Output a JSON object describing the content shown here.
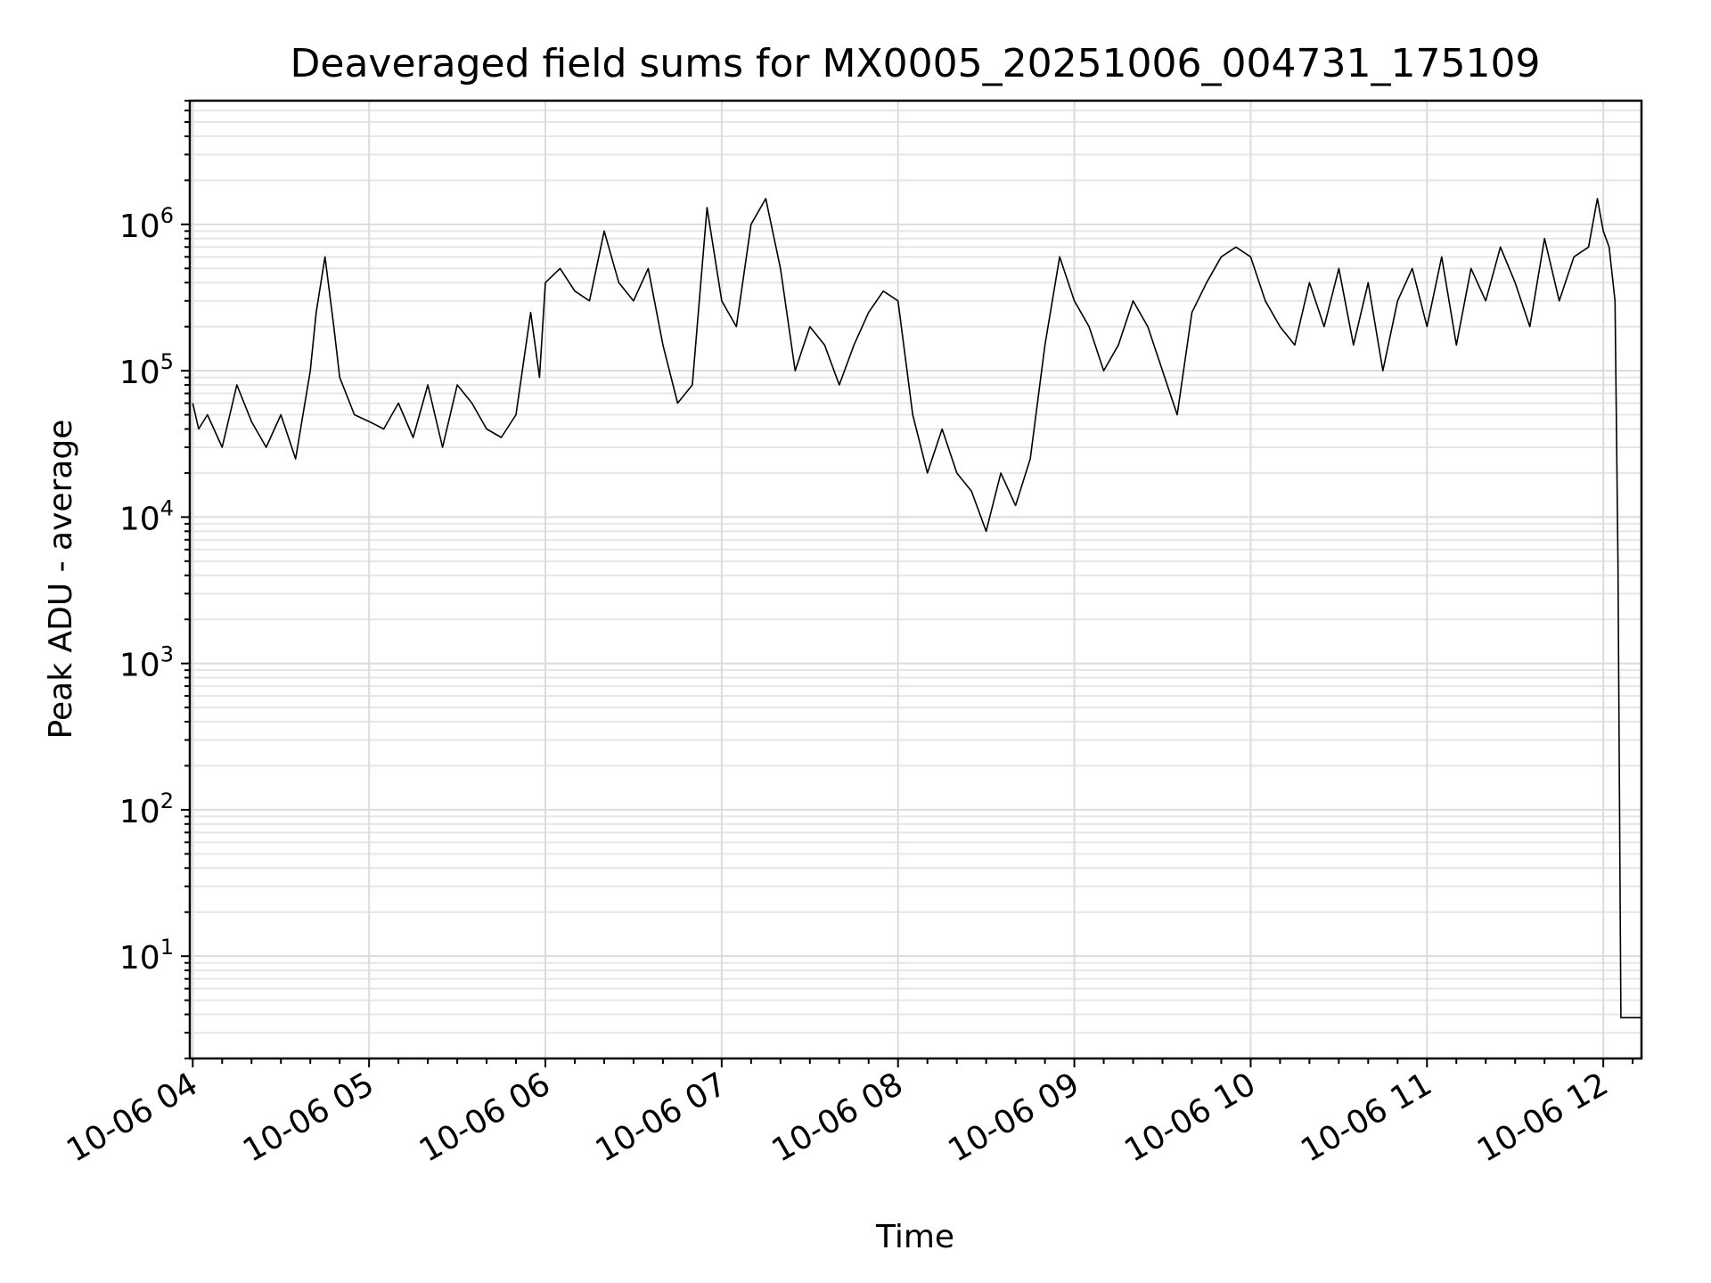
{
  "chart_data": {
    "type": "line",
    "title": "Deaveraged field sums for MX0005_20251006_004731_175109",
    "xlabel": "Time",
    "ylabel": "Peak ADU - average",
    "yscale": "log",
    "ylim": [
      2.0,
      7000000
    ],
    "xlim": [
      "2025-10-06 03:59",
      "2025-10-06 12:13"
    ],
    "grid": true,
    "x_ticks": [
      {
        "value": "2025-10-06 04:00",
        "label": "10-06 04"
      },
      {
        "value": "2025-10-06 05:00",
        "label": "10-06 05"
      },
      {
        "value": "2025-10-06 06:00",
        "label": "10-06 06"
      },
      {
        "value": "2025-10-06 07:00",
        "label": "10-06 07"
      },
      {
        "value": "2025-10-06 08:00",
        "label": "10-06 08"
      },
      {
        "value": "2025-10-06 09:00",
        "label": "10-06 09"
      },
      {
        "value": "2025-10-06 10:00",
        "label": "10-06 10"
      },
      {
        "value": "2025-10-06 11:00",
        "label": "10-06 11"
      },
      {
        "value": "2025-10-06 12:00",
        "label": "10-06 12"
      }
    ],
    "y_ticks": [
      {
        "value": 10,
        "base": "10",
        "exp": "1"
      },
      {
        "value": 100,
        "base": "10",
        "exp": "2"
      },
      {
        "value": 1000,
        "base": "10",
        "exp": "3"
      },
      {
        "value": 10000,
        "base": "10",
        "exp": "4"
      },
      {
        "value": 100000,
        "base": "10",
        "exp": "5"
      },
      {
        "value": 1000000,
        "base": "10",
        "exp": "6"
      }
    ],
    "series": [
      {
        "color": "#000000",
        "points": [
          [
            "2025-10-06 04:00",
            60000
          ],
          [
            "2025-10-06 04:02",
            40000
          ],
          [
            "2025-10-06 04:05",
            50000
          ],
          [
            "2025-10-06 04:10",
            30000
          ],
          [
            "2025-10-06 04:15",
            80000
          ],
          [
            "2025-10-06 04:20",
            45000
          ],
          [
            "2025-10-06 04:25",
            30000
          ],
          [
            "2025-10-06 04:30",
            50000
          ],
          [
            "2025-10-06 04:35",
            25000
          ],
          [
            "2025-10-06 04:40",
            100000
          ],
          [
            "2025-10-06 04:42",
            250000
          ],
          [
            "2025-10-06 04:45",
            600000
          ],
          [
            "2025-10-06 04:48",
            200000
          ],
          [
            "2025-10-06 04:50",
            90000
          ],
          [
            "2025-10-06 04:55",
            50000
          ],
          [
            "2025-10-06 05:00",
            45000
          ],
          [
            "2025-10-06 05:05",
            40000
          ],
          [
            "2025-10-06 05:10",
            60000
          ],
          [
            "2025-10-06 05:15",
            35000
          ],
          [
            "2025-10-06 05:20",
            80000
          ],
          [
            "2025-10-06 05:25",
            30000
          ],
          [
            "2025-10-06 05:30",
            80000
          ],
          [
            "2025-10-06 05:35",
            60000
          ],
          [
            "2025-10-06 05:40",
            40000
          ],
          [
            "2025-10-06 05:45",
            35000
          ],
          [
            "2025-10-06 05:50",
            50000
          ],
          [
            "2025-10-06 05:55",
            250000
          ],
          [
            "2025-10-06 05:58",
            90000
          ],
          [
            "2025-10-06 06:00",
            400000
          ],
          [
            "2025-10-06 06:05",
            500000
          ],
          [
            "2025-10-06 06:10",
            350000
          ],
          [
            "2025-10-06 06:15",
            300000
          ],
          [
            "2025-10-06 06:20",
            900000
          ],
          [
            "2025-10-06 06:25",
            400000
          ],
          [
            "2025-10-06 06:30",
            300000
          ],
          [
            "2025-10-06 06:35",
            500000
          ],
          [
            "2025-10-06 06:40",
            150000
          ],
          [
            "2025-10-06 06:45",
            60000
          ],
          [
            "2025-10-06 06:50",
            80000
          ],
          [
            "2025-10-06 06:55",
            1300000
          ],
          [
            "2025-10-06 07:00",
            300000
          ],
          [
            "2025-10-06 07:05",
            200000
          ],
          [
            "2025-10-06 07:10",
            1000000
          ],
          [
            "2025-10-06 07:15",
            1500000
          ],
          [
            "2025-10-06 07:20",
            500000
          ],
          [
            "2025-10-06 07:25",
            100000
          ],
          [
            "2025-10-06 07:30",
            200000
          ],
          [
            "2025-10-06 07:35",
            150000
          ],
          [
            "2025-10-06 07:40",
            80000
          ],
          [
            "2025-10-06 07:45",
            150000
          ],
          [
            "2025-10-06 07:50",
            250000
          ],
          [
            "2025-10-06 07:55",
            350000
          ],
          [
            "2025-10-06 08:00",
            300000
          ],
          [
            "2025-10-06 08:05",
            50000
          ],
          [
            "2025-10-06 08:10",
            20000
          ],
          [
            "2025-10-06 08:15",
            40000
          ],
          [
            "2025-10-06 08:20",
            20000
          ],
          [
            "2025-10-06 08:25",
            15000
          ],
          [
            "2025-10-06 08:30",
            8000
          ],
          [
            "2025-10-06 08:35",
            20000
          ],
          [
            "2025-10-06 08:40",
            12000
          ],
          [
            "2025-10-06 08:45",
            25000
          ],
          [
            "2025-10-06 08:50",
            150000
          ],
          [
            "2025-10-06 08:55",
            600000
          ],
          [
            "2025-10-06 09:00",
            300000
          ],
          [
            "2025-10-06 09:05",
            200000
          ],
          [
            "2025-10-06 09:10",
            100000
          ],
          [
            "2025-10-06 09:15",
            150000
          ],
          [
            "2025-10-06 09:20",
            300000
          ],
          [
            "2025-10-06 09:25",
            200000
          ],
          [
            "2025-10-06 09:30",
            100000
          ],
          [
            "2025-10-06 09:35",
            50000
          ],
          [
            "2025-10-06 09:40",
            250000
          ],
          [
            "2025-10-06 09:45",
            400000
          ],
          [
            "2025-10-06 09:50",
            600000
          ],
          [
            "2025-10-06 09:55",
            700000
          ],
          [
            "2025-10-06 10:00",
            600000
          ],
          [
            "2025-10-06 10:05",
            300000
          ],
          [
            "2025-10-06 10:10",
            200000
          ],
          [
            "2025-10-06 10:15",
            150000
          ],
          [
            "2025-10-06 10:20",
            400000
          ],
          [
            "2025-10-06 10:25",
            200000
          ],
          [
            "2025-10-06 10:30",
            500000
          ],
          [
            "2025-10-06 10:35",
            150000
          ],
          [
            "2025-10-06 10:40",
            400000
          ],
          [
            "2025-10-06 10:45",
            100000
          ],
          [
            "2025-10-06 10:50",
            300000
          ],
          [
            "2025-10-06 10:55",
            500000
          ],
          [
            "2025-10-06 11:00",
            200000
          ],
          [
            "2025-10-06 11:05",
            600000
          ],
          [
            "2025-10-06 11:10",
            150000
          ],
          [
            "2025-10-06 11:15",
            500000
          ],
          [
            "2025-10-06 11:20",
            300000
          ],
          [
            "2025-10-06 11:25",
            700000
          ],
          [
            "2025-10-06 11:30",
            400000
          ],
          [
            "2025-10-06 11:35",
            200000
          ],
          [
            "2025-10-06 11:40",
            800000
          ],
          [
            "2025-10-06 11:45",
            300000
          ],
          [
            "2025-10-06 11:50",
            600000
          ],
          [
            "2025-10-06 11:55",
            700000
          ],
          [
            "2025-10-06 11:58",
            1500000
          ],
          [
            "2025-10-06 12:00",
            900000
          ],
          [
            "2025-10-06 12:02",
            700000
          ],
          [
            "2025-10-06 12:04",
            300000
          ],
          [
            "2025-10-06 12:05",
            5000
          ],
          [
            "2025-10-06 12:06",
            3.8
          ],
          [
            "2025-10-06 12:13",
            3.8
          ]
        ]
      }
    ]
  }
}
